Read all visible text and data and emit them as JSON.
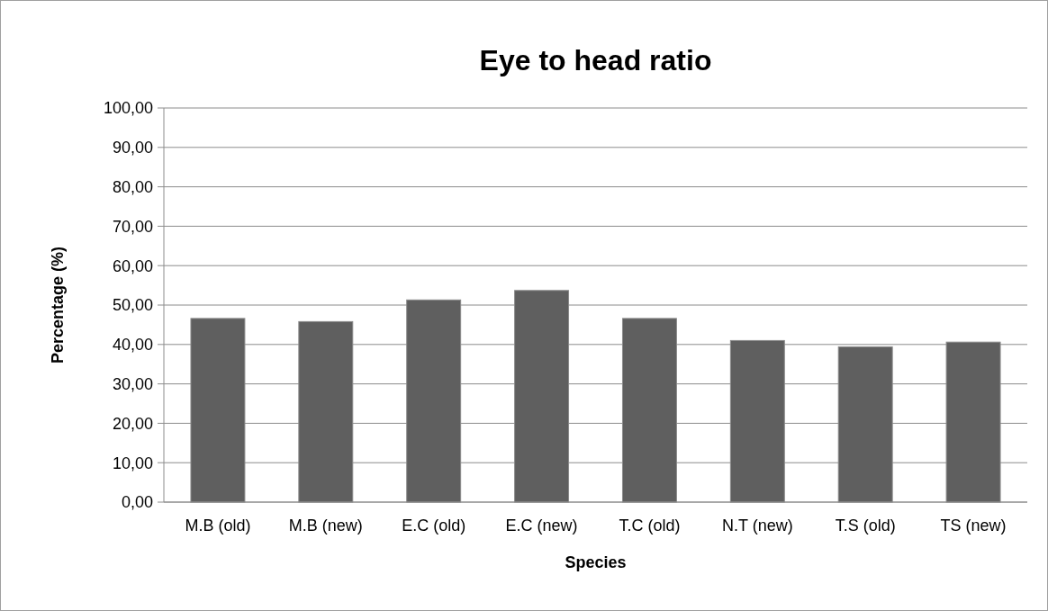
{
  "chart_data": {
    "type": "bar",
    "title": "Eye to head ratio",
    "xlabel": "Species",
    "ylabel": "Percentage (%)",
    "categories": [
      "M.B (old)",
      "M.B (new)",
      "E.C (old)",
      "E.C (new)",
      "T.C (old)",
      "N.T (new)",
      "T.S (old)",
      "TS (new)"
    ],
    "values": [
      46.6,
      45.8,
      51.3,
      53.7,
      46.6,
      41.0,
      39.4,
      40.6
    ],
    "color": "#5f5f5f",
    "ylim": [
      0,
      100
    ],
    "yticks": [
      {
        "value": 0,
        "label": "0,00"
      },
      {
        "value": 10,
        "label": "10,00"
      },
      {
        "value": 20,
        "label": "20,00"
      },
      {
        "value": 30,
        "label": "30,00"
      },
      {
        "value": 40,
        "label": "40,00"
      },
      {
        "value": 50,
        "label": "50,00"
      },
      {
        "value": 60,
        "label": "60,00"
      },
      {
        "value": 70,
        "label": "70,00"
      },
      {
        "value": 80,
        "label": "80,00"
      },
      {
        "value": 90,
        "label": "90,00"
      },
      {
        "value": 100,
        "label": "100,00"
      }
    ],
    "grid": "y"
  }
}
